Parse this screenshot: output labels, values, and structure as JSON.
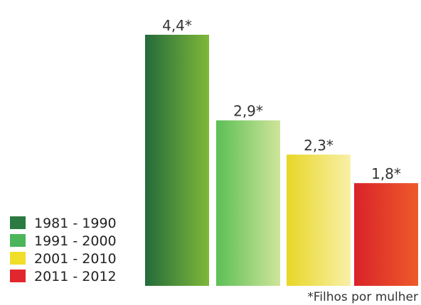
{
  "chart_data": {
    "type": "bar",
    "categories": [
      "1981 - 1990",
      "1991 - 2000",
      "2001 - 2010",
      "2011 - 2012"
    ],
    "values": [
      4.4,
      2.9,
      2.3,
      1.8
    ],
    "data_labels": [
      "4,4*",
      "2,9*",
      "2,3*",
      "1,8*"
    ],
    "colors": [
      [
        "#236b3a",
        "#7fb83a"
      ],
      [
        "#5cbf55",
        "#cfe59a"
      ],
      [
        "#e8d626",
        "#f8f0a8"
      ],
      [
        "#d9232a",
        "#ee5a2a"
      ]
    ],
    "legend_colors": [
      "#2a7a41",
      "#4bb55a",
      "#f1de2a",
      "#e2262e"
    ],
    "legend_position": "left",
    "grid": false,
    "ylim": [
      0,
      4.4
    ],
    "footnote": "*Filhos por mulher"
  }
}
